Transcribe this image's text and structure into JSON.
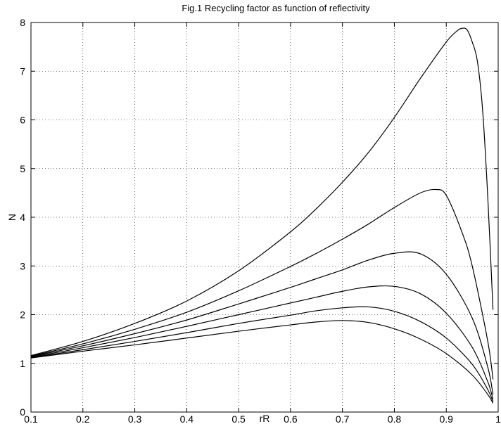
{
  "chart_data": {
    "type": "line",
    "title": "Fig.1 Recycling factor as function of reflectivity",
    "xlabel": "rR",
    "ylabel": "N",
    "xlim": [
      0.1,
      1.0
    ],
    "ylim": [
      0,
      8
    ],
    "grid": true,
    "x_ticks": [
      0.1,
      0.2,
      0.3,
      0.4,
      0.5,
      0.6,
      0.7,
      0.8,
      0.9,
      1.0
    ],
    "x_tick_labels": [
      "0.1",
      "0.2",
      "0.3",
      "0.4",
      "0.5",
      "0.6",
      "0.7",
      "0.8",
      "0.9",
      "1"
    ],
    "y_ticks": [
      0,
      1,
      2,
      3,
      4,
      5,
      6,
      7,
      8
    ],
    "y_tick_labels": [
      "0",
      "1",
      "2",
      "3",
      "4",
      "5",
      "6",
      "7",
      "8"
    ],
    "line_color": "#000000",
    "series": [
      {
        "x": [
          0.1,
          0.2,
          0.3,
          0.4,
          0.5,
          0.6,
          0.65,
          0.7,
          0.75,
          0.8,
          0.85,
          0.9,
          0.95,
          0.98,
          0.99
        ],
        "y": [
          1.11,
          1.25,
          1.38,
          1.52,
          1.66,
          1.79,
          1.85,
          1.88,
          1.84,
          1.71,
          1.5,
          1.2,
          0.76,
          0.36,
          0.18
        ]
      },
      {
        "x": [
          0.1,
          0.2,
          0.3,
          0.4,
          0.5,
          0.6,
          0.65,
          0.7,
          0.75,
          0.8,
          0.85,
          0.9,
          0.95,
          0.98,
          0.99
        ],
        "y": [
          1.12,
          1.28,
          1.45,
          1.63,
          1.82,
          1.99,
          2.08,
          2.14,
          2.16,
          2.07,
          1.86,
          1.52,
          0.98,
          0.46,
          0.21
        ]
      },
      {
        "x": [
          0.1,
          0.2,
          0.3,
          0.4,
          0.5,
          0.6,
          0.65,
          0.7,
          0.75,
          0.8,
          0.85,
          0.9,
          0.95,
          0.98,
          0.99
        ],
        "y": [
          1.13,
          1.32,
          1.53,
          1.76,
          2.0,
          2.24,
          2.36,
          2.48,
          2.57,
          2.58,
          2.43,
          2.03,
          1.33,
          0.62,
          0.26
        ]
      },
      {
        "x": [
          0.1,
          0.2,
          0.3,
          0.4,
          0.5,
          0.6,
          0.65,
          0.7,
          0.75,
          0.8,
          0.85,
          0.9,
          0.95,
          0.98,
          0.99
        ],
        "y": [
          1.14,
          1.36,
          1.61,
          1.89,
          2.22,
          2.56,
          2.74,
          2.92,
          3.12,
          3.26,
          3.25,
          2.83,
          1.93,
          0.92,
          0.36
        ]
      },
      {
        "x": [
          0.1,
          0.2,
          0.3,
          0.4,
          0.5,
          0.6,
          0.65,
          0.7,
          0.75,
          0.8,
          0.85,
          0.88,
          0.9,
          0.93,
          0.95,
          0.98,
          0.99
        ],
        "y": [
          1.15,
          1.4,
          1.7,
          2.05,
          2.49,
          2.99,
          3.26,
          3.55,
          3.86,
          4.2,
          4.5,
          4.57,
          4.45,
          3.7,
          3.0,
          1.45,
          0.67
        ]
      },
      {
        "x": [
          0.1,
          0.2,
          0.3,
          0.4,
          0.5,
          0.6,
          0.65,
          0.7,
          0.75,
          0.8,
          0.85,
          0.9,
          0.92,
          0.93,
          0.94,
          0.95,
          0.96,
          0.97,
          0.98,
          0.99
        ],
        "y": [
          1.16,
          1.45,
          1.82,
          2.28,
          2.9,
          3.7,
          4.18,
          4.72,
          5.33,
          6.05,
          6.85,
          7.6,
          7.82,
          7.88,
          7.85,
          7.6,
          7.2,
          6.2,
          4.4,
          2.1
        ]
      }
    ]
  }
}
